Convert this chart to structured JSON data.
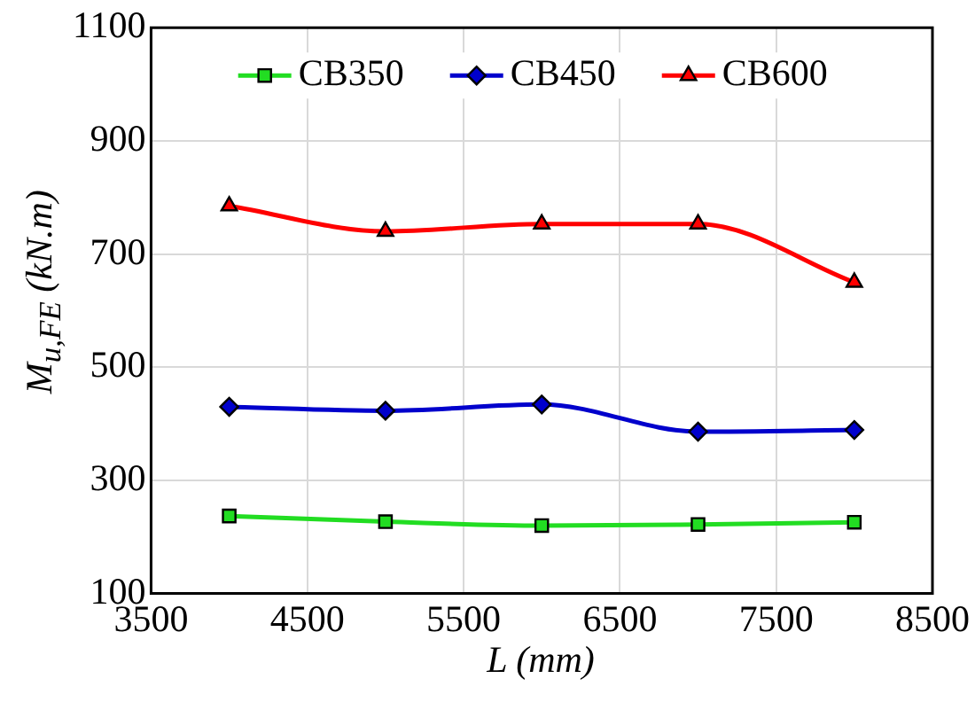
{
  "chart_data": {
    "type": "line",
    "xlabel": "L (mm)",
    "ylabel": "M$_{u,FE}$ (kN.m)",
    "x": [
      4000,
      5000,
      6000,
      7000,
      8000
    ],
    "series": [
      {
        "name": "CB350",
        "color": "#22dd22",
        "marker": "square",
        "values": [
          237,
          227,
          220,
          222,
          226
        ]
      },
      {
        "name": "CB450",
        "color": "#0000cc",
        "marker": "diamond",
        "values": [
          430,
          423,
          434,
          386,
          389
        ]
      },
      {
        "name": "CB600",
        "color": "#ff0000",
        "marker": "triangle",
        "values": [
          785,
          740,
          753,
          753,
          650
        ]
      }
    ],
    "xlim": [
      3500,
      8500
    ],
    "xticks": [
      3500,
      4500,
      5500,
      6500,
      7500,
      8500
    ],
    "ylim": [
      100,
      1100
    ],
    "yticks": [
      100,
      300,
      500,
      700,
      900,
      1100
    ],
    "grid": true,
    "legend": "top"
  }
}
